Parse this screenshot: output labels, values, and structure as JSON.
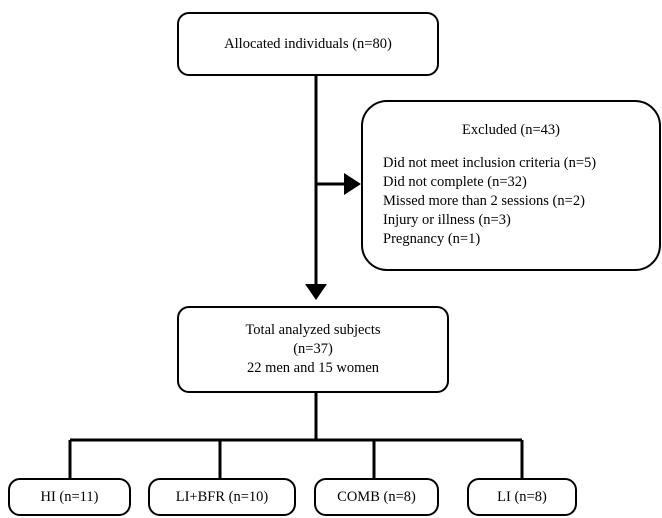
{
  "allocated": {
    "label": "Allocated individuals (n=80)"
  },
  "excluded": {
    "title": "Excluded (n=43)",
    "reasons": [
      "Did not meet inclusion criteria (n=5)",
      "Did not complete (n=32)",
      "Missed more than 2 sessions (n=2)",
      "Injury or illness (n=3)",
      "Pregnancy (n=1)"
    ]
  },
  "analyzed": {
    "line1": "Total analyzed subjects",
    "line2": "(n=37)",
    "line3": "22 men and 15 women"
  },
  "groups": [
    {
      "label": "HI (n=11)"
    },
    {
      "label": "LI+BFR (n=10)"
    },
    {
      "label": "COMB (n=8)"
    },
    {
      "label": "LI (n=8)"
    }
  ],
  "colors": {
    "stroke": "#000000",
    "background": "#ffffff"
  }
}
